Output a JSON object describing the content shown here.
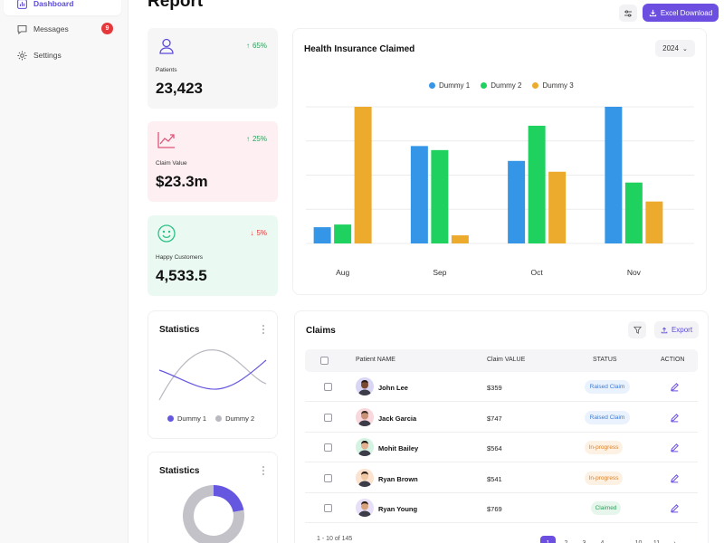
{
  "sidebar": {
    "items": [
      {
        "label": "Dashboard",
        "icon": "bar-chart-icon",
        "active": true
      },
      {
        "label": "Messages",
        "icon": "chat-icon",
        "badge": "9"
      },
      {
        "label": "Settings",
        "icon": "gear-icon"
      }
    ]
  },
  "header": {
    "title": "Report",
    "excel_label": "Excel Download"
  },
  "stats": [
    {
      "label": "Patients",
      "value": "23,423",
      "change": "65%",
      "direction": "up",
      "icon": "user-icon",
      "bg": "#f6f6f7",
      "accent": "#5b4bdb"
    },
    {
      "label": "Claim Value",
      "value": "$23.3m",
      "change": "25%",
      "direction": "up",
      "icon": "trend-up-icon",
      "bg": "#fdeff2",
      "accent": "#e0557a"
    },
    {
      "label": "Happy Customers",
      "value": "4,533.5",
      "change": "5%",
      "direction": "down",
      "icon": "smile-icon",
      "bg": "#eafaf3",
      "accent": "#2cc185"
    }
  ],
  "insurance_chart": {
    "title": "Health Insurance Claimed",
    "year": "2024"
  },
  "chart_data": {
    "type": "bar",
    "categories": [
      "Aug",
      "Sep",
      "Oct",
      "Nov"
    ],
    "series": [
      {
        "name": "Dummy 1",
        "color": "#3596e8",
        "values": [
          12,
          72,
          61,
          101
        ]
      },
      {
        "name": "Dummy 2",
        "color": "#1fd260",
        "values": [
          14,
          69,
          87,
          45
        ]
      },
      {
        "name": "Dummy 3",
        "color": "#edab2e",
        "values": [
          101,
          6,
          53,
          31
        ]
      }
    ],
    "ylim": [
      0,
      101
    ],
    "grid": true,
    "legend": "top-center"
  },
  "statistics_line": {
    "title": "Statistics",
    "legend": [
      {
        "name": "Dummy 1",
        "color": "#6657e0"
      },
      {
        "name": "Dummy 2",
        "color": "#b9b9c1"
      }
    ]
  },
  "statistics_donut": {
    "title": "Statistics",
    "segments": [
      {
        "value": 22,
        "color": "#6657e0"
      },
      {
        "value": 78,
        "color": "#c2c2c8"
      }
    ]
  },
  "claims": {
    "title": "Claims",
    "export_label": "Export",
    "columns": [
      "Patient NAME",
      "Claim VALUE",
      "STATUS",
      "ACTION"
    ],
    "rows": [
      {
        "name": "John Lee",
        "value": "$359",
        "status": "Raised Claim",
        "status_type": "raised",
        "avatar_bg": "#d9d5f5",
        "skin": "#7a4a30",
        "hair": "#2a1a12"
      },
      {
        "name": "Jack Garcia",
        "value": "$747",
        "status": "Raised Claim",
        "status_type": "raised",
        "avatar_bg": "#f8d7dd",
        "skin": "#c99278",
        "hair": "#3a2a20"
      },
      {
        "name": "Mohit Bailey",
        "value": "$564",
        "status": "In-progress",
        "status_type": "progress",
        "avatar_bg": "#d4f3e3",
        "skin": "#e3b18f",
        "hair": "#1f1410"
      },
      {
        "name": "Ryan Brown",
        "value": "$541",
        "status": "In-progress",
        "status_type": "progress",
        "avatar_bg": "#fbe3cf",
        "skin": "#f0c7a3",
        "hair": "#2a1a12"
      },
      {
        "name": "Ryan Young",
        "value": "$769",
        "status": "Claimed",
        "status_type": "claimed",
        "avatar_bg": "#e7def8",
        "skin": "#d7a27c",
        "hair": "#2e1c15"
      }
    ],
    "pagination": {
      "summary": "1 - 10 of 145",
      "pages": [
        "1",
        "2",
        "3",
        "4",
        "...",
        "10",
        "11"
      ]
    }
  }
}
